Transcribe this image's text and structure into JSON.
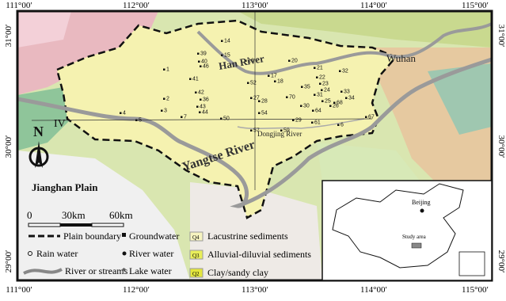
{
  "map": {
    "top_ticks": [
      "111°00′",
      "112°00′",
      "113°00′",
      "114°00′",
      "115°00′"
    ],
    "bottom_ticks": [
      "111°00′",
      "112°00′",
      "113°00′",
      "114°00′",
      "115°00′"
    ],
    "left_ticks": [
      "31°00′",
      "30°00′",
      "29°00′"
    ],
    "right_ticks": [
      "31°00′",
      "30°00′",
      "29°00′"
    ],
    "labels": {
      "han_river": "Han River",
      "wuhan": "Wuhan",
      "yangtse": "Yangtse River",
      "dongjing": "Dongjing River",
      "jianghan": "Jianghan Plain",
      "zone": "IV",
      "north": "N"
    },
    "scale": [
      "0",
      "30km",
      "60km"
    ],
    "legend": {
      "plain_boundary": "Plain boundary",
      "rain_water": "Rain water",
      "rivers": "River or streams",
      "groundwater": "Groundwater",
      "river_water": "River water",
      "lake_water": "Lake water",
      "q4": {
        "symbol": "Q4",
        "label": "Lacustrine sediments"
      },
      "q3": {
        "symbol": "Q3",
        "label": "Alluvial-diluvial sediments"
      },
      "q2": {
        "symbol": "Q2",
        "label": "Clay/sandy clay"
      }
    },
    "inset": {
      "beijing": "Beijing",
      "study_area": "Study area"
    },
    "samples": [
      "14",
      "39",
      "15",
      "16",
      "20",
      "40",
      "46",
      "41",
      "1",
      "2",
      "3",
      "4",
      "5",
      "42",
      "36",
      "43",
      "44",
      "7",
      "52",
      "17",
      "18",
      "21",
      "22",
      "23",
      "24",
      "25",
      "26",
      "27",
      "28",
      "29",
      "30",
      "31",
      "32",
      "33",
      "34",
      "35",
      "50",
      "54",
      "57",
      "59",
      "61",
      "64",
      "67",
      "68",
      "70",
      "6"
    ]
  }
}
